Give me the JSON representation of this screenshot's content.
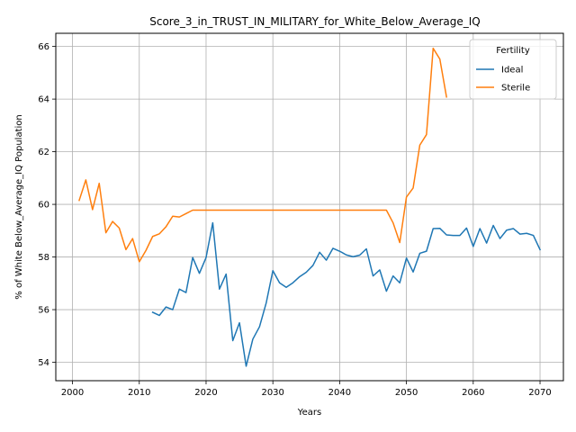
{
  "chart_data": {
    "type": "line",
    "title": "Score_3_in_TRUST_IN_MILITARY_for_White_Below_Average_IQ",
    "xlabel": "Years",
    "ylabel": "% of White Below_Average_IQ Population",
    "xlim": [
      1997.5,
      2073.5
    ],
    "ylim": [
      53.3,
      66.5
    ],
    "xticks": [
      2000,
      2010,
      2020,
      2030,
      2040,
      2050,
      2060,
      2070
    ],
    "yticks": [
      54,
      56,
      58,
      60,
      62,
      64,
      66
    ],
    "grid": true,
    "legend": {
      "title": "Fertility",
      "position": "upper right"
    },
    "series": [
      {
        "name": "Ideal",
        "color": "#1f77b4",
        "x": [
          2012,
          2013,
          2014,
          2015,
          2016,
          2017,
          2018,
          2019,
          2020,
          2021,
          2022,
          2023,
          2024,
          2025,
          2026,
          2027,
          2028,
          2029,
          2030,
          2031,
          2032,
          2033,
          2034,
          2035,
          2036,
          2037,
          2038,
          2039,
          2040,
          2041,
          2042,
          2043,
          2044,
          2045,
          2046,
          2047,
          2048,
          2049,
          2050,
          2051,
          2052,
          2053,
          2054,
          2055,
          2056,
          2057,
          2058,
          2059,
          2060,
          2061,
          2062,
          2063,
          2064,
          2065,
          2066,
          2067,
          2068,
          2069,
          2070
        ],
        "y": [
          55.9,
          55.78,
          56.1,
          56.0,
          56.78,
          56.65,
          57.98,
          57.38,
          57.98,
          59.3,
          56.78,
          57.35,
          54.82,
          55.5,
          53.85,
          54.88,
          55.35,
          56.25,
          57.48,
          57.02,
          56.85,
          57.02,
          57.25,
          57.42,
          57.68,
          58.18,
          57.88,
          58.33,
          58.22,
          58.08,
          58.01,
          58.07,
          58.31,
          57.28,
          57.51,
          56.7,
          57.28,
          57.02,
          57.96,
          57.43,
          58.14,
          58.22,
          59.08,
          59.09,
          58.84,
          58.82,
          58.82,
          59.1,
          58.4,
          59.08,
          58.53,
          59.2,
          58.7,
          59.02,
          59.08,
          58.87,
          58.9,
          58.82,
          58.28
        ]
      },
      {
        "name": "Sterile",
        "color": "#ff7f0e",
        "x": [
          2001,
          2002,
          2003,
          2004,
          2005,
          2006,
          2007,
          2008,
          2009,
          2010,
          2011,
          2012,
          2013,
          2014,
          2015,
          2016,
          2017,
          2018,
          2019,
          2020,
          2021,
          2022,
          2023,
          2024,
          2025,
          2026,
          2027,
          2028,
          2029,
          2030,
          2031,
          2032,
          2033,
          2034,
          2035,
          2036,
          2037,
          2038,
          2039,
          2040,
          2041,
          2042,
          2043,
          2044,
          2045,
          2046,
          2047,
          2048,
          2049,
          2050,
          2051,
          2052,
          2053,
          2054,
          2055,
          2056
        ],
        "y": [
          60.15,
          60.93,
          59.8,
          60.8,
          58.92,
          59.35,
          59.1,
          58.28,
          58.7,
          57.82,
          58.25,
          58.78,
          58.88,
          59.15,
          59.55,
          59.52,
          59.65,
          59.78,
          59.78,
          59.78,
          59.78,
          59.78,
          59.78,
          59.78,
          59.78,
          59.78,
          59.78,
          59.78,
          59.78,
          59.78,
          59.78,
          59.78,
          59.78,
          59.78,
          59.78,
          59.78,
          59.78,
          59.78,
          59.78,
          59.78,
          59.78,
          59.78,
          59.78,
          59.78,
          59.78,
          59.78,
          59.78,
          59.3,
          58.55,
          60.28,
          60.62,
          62.25,
          62.65,
          65.93,
          65.52,
          64.08
        ]
      }
    ]
  }
}
